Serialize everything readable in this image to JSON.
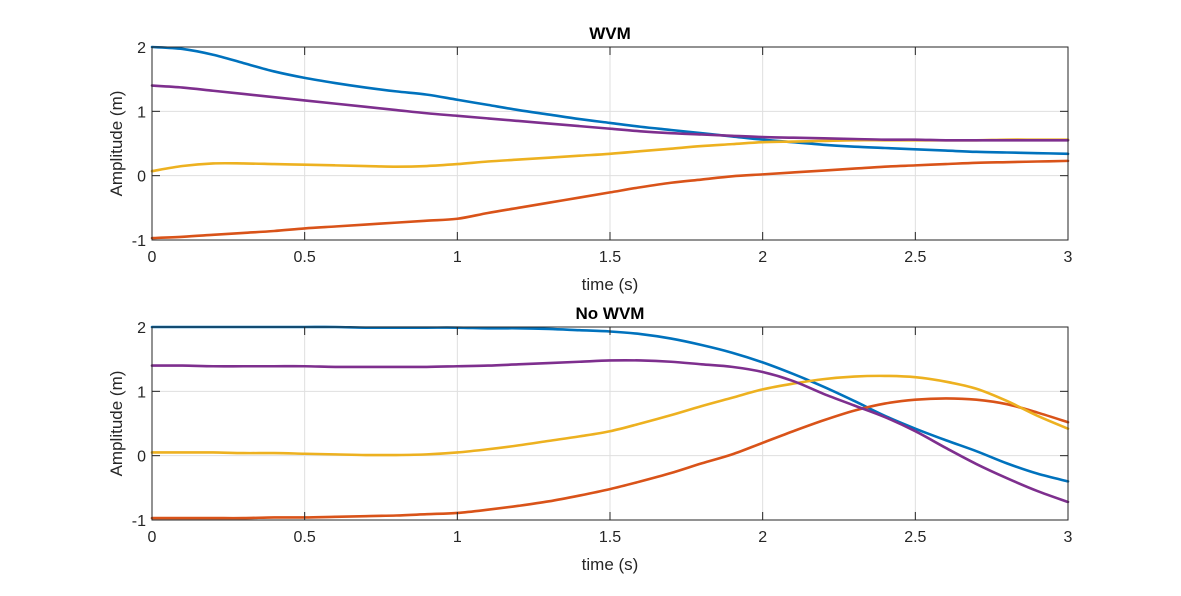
{
  "chart_data": [
    {
      "type": "line",
      "title": "WVM",
      "xlabel": "time (s)",
      "ylabel": "Amplitude (m)",
      "xlim": [
        0,
        3
      ],
      "ylim": [
        -1,
        2
      ],
      "xticks": [
        "0",
        "0.5",
        "1",
        "1.5",
        "2",
        "2.5",
        "3"
      ],
      "yticks": [
        "-1",
        "0",
        "1",
        "2"
      ],
      "grid": true,
      "x": [
        0,
        0.1,
        0.2,
        0.3,
        0.4,
        0.5,
        0.6,
        0.7,
        0.8,
        0.9,
        1.0,
        1.1,
        1.2,
        1.3,
        1.4,
        1.5,
        1.6,
        1.7,
        1.8,
        1.9,
        2.0,
        2.1,
        2.2,
        2.3,
        2.4,
        2.5,
        2.6,
        2.7,
        2.8,
        2.9,
        3.0
      ],
      "series": [
        {
          "color": "#0072BD",
          "values": [
            2.0,
            1.97,
            1.88,
            1.75,
            1.62,
            1.52,
            1.44,
            1.37,
            1.31,
            1.26,
            1.18,
            1.1,
            1.02,
            0.95,
            0.88,
            0.82,
            0.76,
            0.71,
            0.66,
            0.61,
            0.56,
            0.52,
            0.48,
            0.45,
            0.43,
            0.41,
            0.39,
            0.37,
            0.36,
            0.35,
            0.34
          ]
        },
        {
          "color": "#D95319",
          "values": [
            -0.97,
            -0.95,
            -0.92,
            -0.89,
            -0.86,
            -0.82,
            -0.79,
            -0.76,
            -0.73,
            -0.7,
            -0.67,
            -0.58,
            -0.5,
            -0.42,
            -0.34,
            -0.26,
            -0.18,
            -0.11,
            -0.06,
            -0.01,
            0.02,
            0.05,
            0.08,
            0.11,
            0.14,
            0.16,
            0.18,
            0.2,
            0.21,
            0.22,
            0.23
          ]
        },
        {
          "color": "#EDB120",
          "values": [
            0.07,
            0.15,
            0.19,
            0.19,
            0.18,
            0.17,
            0.16,
            0.15,
            0.14,
            0.15,
            0.18,
            0.22,
            0.25,
            0.28,
            0.31,
            0.34,
            0.38,
            0.42,
            0.46,
            0.49,
            0.52,
            0.53,
            0.54,
            0.55,
            0.55,
            0.55,
            0.55,
            0.55,
            0.56,
            0.56,
            0.56
          ]
        },
        {
          "color": "#7E2F8E",
          "values": [
            1.4,
            1.37,
            1.32,
            1.27,
            1.22,
            1.17,
            1.12,
            1.07,
            1.02,
            0.97,
            0.93,
            0.89,
            0.85,
            0.81,
            0.77,
            0.73,
            0.69,
            0.66,
            0.64,
            0.62,
            0.6,
            0.59,
            0.58,
            0.57,
            0.56,
            0.56,
            0.55,
            0.55,
            0.55,
            0.55,
            0.55
          ]
        }
      ]
    },
    {
      "type": "line",
      "title": "No WVM",
      "xlabel": "time (s)",
      "ylabel": "Amplitude (m)",
      "xlim": [
        0,
        3
      ],
      "ylim": [
        -1,
        2
      ],
      "xticks": [
        "0",
        "0.5",
        "1",
        "1.5",
        "2",
        "2.5",
        "3"
      ],
      "yticks": [
        "-1",
        "0",
        "1",
        "2"
      ],
      "grid": true,
      "x": [
        0,
        0.1,
        0.2,
        0.3,
        0.4,
        0.5,
        0.6,
        0.7,
        0.8,
        0.9,
        1.0,
        1.1,
        1.2,
        1.3,
        1.4,
        1.5,
        1.6,
        1.7,
        1.8,
        1.9,
        2.0,
        2.1,
        2.2,
        2.3,
        2.4,
        2.5,
        2.6,
        2.7,
        2.8,
        2.9,
        3.0
      ],
      "series": [
        {
          "color": "#0072BD",
          "values": [
            2.0,
            2.0,
            2.0,
            2.0,
            2.0,
            2.0,
            2.0,
            1.99,
            1.99,
            1.99,
            1.99,
            1.98,
            1.98,
            1.97,
            1.95,
            1.93,
            1.89,
            1.82,
            1.72,
            1.6,
            1.45,
            1.27,
            1.07,
            0.85,
            0.62,
            0.42,
            0.24,
            0.07,
            -0.12,
            -0.28,
            -0.4
          ]
        },
        {
          "color": "#D95319",
          "values": [
            -0.97,
            -0.97,
            -0.97,
            -0.97,
            -0.96,
            -0.96,
            -0.95,
            -0.94,
            -0.93,
            -0.91,
            -0.89,
            -0.84,
            -0.78,
            -0.71,
            -0.62,
            -0.52,
            -0.4,
            -0.27,
            -0.12,
            0.02,
            0.2,
            0.38,
            0.55,
            0.7,
            0.81,
            0.87,
            0.89,
            0.87,
            0.8,
            0.67,
            0.52
          ]
        },
        {
          "color": "#EDB120",
          "values": [
            0.05,
            0.05,
            0.05,
            0.04,
            0.04,
            0.03,
            0.02,
            0.01,
            0.01,
            0.02,
            0.05,
            0.1,
            0.16,
            0.23,
            0.3,
            0.38,
            0.5,
            0.63,
            0.77,
            0.9,
            1.03,
            1.12,
            1.19,
            1.23,
            1.24,
            1.22,
            1.15,
            1.04,
            0.85,
            0.62,
            0.42
          ]
        },
        {
          "color": "#7E2F8E",
          "values": [
            1.4,
            1.4,
            1.39,
            1.39,
            1.39,
            1.39,
            1.38,
            1.38,
            1.38,
            1.38,
            1.39,
            1.4,
            1.42,
            1.44,
            1.46,
            1.48,
            1.48,
            1.46,
            1.42,
            1.38,
            1.3,
            1.16,
            0.96,
            0.78,
            0.6,
            0.38,
            0.12,
            -0.13,
            -0.35,
            -0.55,
            -0.72
          ]
        }
      ]
    }
  ]
}
